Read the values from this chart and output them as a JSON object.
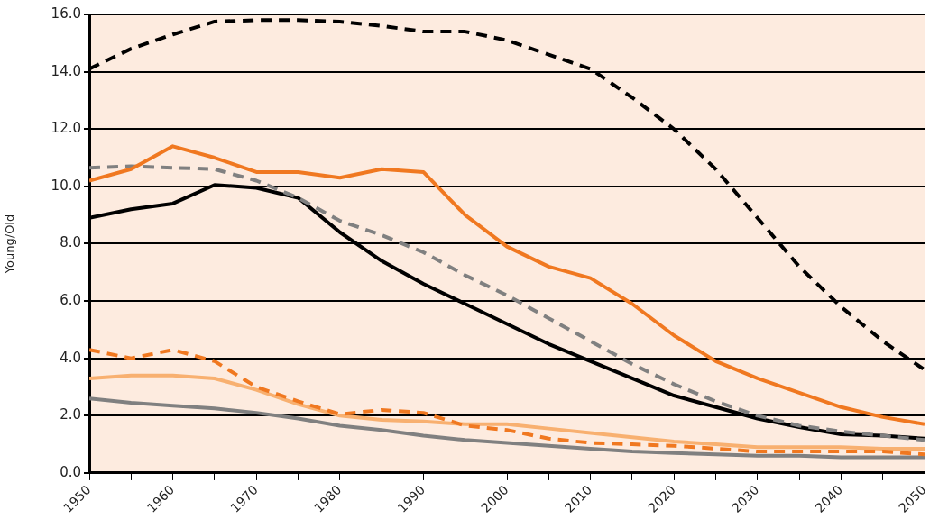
{
  "chart_data": {
    "type": "line",
    "ylabel": "Young/Old",
    "grid": "y",
    "legend": false,
    "marker": "none",
    "x": [
      1950,
      1955,
      1960,
      1965,
      1970,
      1975,
      1980,
      1985,
      1990,
      1995,
      2000,
      2005,
      2010,
      2015,
      2020,
      2025,
      2030,
      2035,
      2040,
      2045,
      2050
    ],
    "xlim": [
      1950,
      2050
    ],
    "xticks": [
      1950,
      {
        "value": 1955,
        "label": null
      },
      1960,
      {
        "value": 1965,
        "label": null
      },
      1970,
      {
        "value": 1975,
        "label": null
      },
      1980,
      {
        "value": 1985,
        "label": null
      },
      1990,
      {
        "value": 1995,
        "label": null
      },
      2000,
      {
        "value": 2005,
        "label": null
      },
      2010,
      {
        "value": 2015,
        "label": null
      },
      2020,
      {
        "value": 2025,
        "label": null
      },
      2030,
      {
        "value": 2035,
        "label": null
      },
      2040,
      {
        "value": 2045,
        "label": null
      },
      2050
    ],
    "ylim": [
      0,
      16
    ],
    "yticks": [
      {
        "value": 0,
        "label": "0.0"
      },
      {
        "value": 2,
        "label": "2.0"
      },
      {
        "value": 4,
        "label": "4.0"
      },
      {
        "value": 6,
        "label": "6.0"
      },
      {
        "value": 8,
        "label": "8.0"
      },
      {
        "value": 10,
        "label": "10.0"
      },
      {
        "value": 12,
        "label": "12.0"
      },
      {
        "value": 14,
        "label": "14.0"
      },
      {
        "value": 16,
        "label": "16.0"
      }
    ],
    "series": [
      {
        "color": "#000000",
        "line_style": "dashed",
        "values": [
          14.1,
          14.8,
          15.3,
          15.75,
          15.8,
          15.8,
          15.75,
          15.6,
          15.4,
          15.4,
          15.1,
          14.6,
          14.1,
          13.1,
          12.0,
          10.6,
          8.9,
          7.2,
          5.8,
          4.6,
          3.6
        ]
      },
      {
        "color": "#f07820",
        "line_style": "solid",
        "values": [
          10.2,
          10.6,
          11.4,
          11.0,
          10.5,
          10.5,
          10.3,
          10.6,
          10.5,
          9.0,
          7.9,
          7.2,
          6.8,
          5.9,
          4.8,
          3.9,
          3.3,
          2.8,
          2.3,
          1.95,
          1.7
        ]
      },
      {
        "color": "#808080",
        "line_style": "dashed",
        "values": [
          10.65,
          10.7,
          10.65,
          10.6,
          10.2,
          9.6,
          8.8,
          8.3,
          7.7,
          6.9,
          6.2,
          5.4,
          4.6,
          3.8,
          3.1,
          2.5,
          2.0,
          1.65,
          1.45,
          1.3,
          1.15
        ]
      },
      {
        "color": "#000000",
        "line_style": "solid",
        "values": [
          8.9,
          9.2,
          9.4,
          10.05,
          9.95,
          9.6,
          8.4,
          7.4,
          6.6,
          5.9,
          5.2,
          4.5,
          3.9,
          3.3,
          2.7,
          2.3,
          1.9,
          1.6,
          1.35,
          1.3,
          1.2
        ]
      },
      {
        "color": "#f07820",
        "line_style": "dashed",
        "values": [
          4.3,
          4.0,
          4.3,
          3.9,
          3.0,
          2.5,
          2.05,
          2.2,
          2.1,
          1.65,
          1.5,
          1.2,
          1.05,
          1.0,
          0.95,
          0.85,
          0.75,
          0.75,
          0.75,
          0.75,
          0.65
        ]
      },
      {
        "color": "#f8b070",
        "line_style": "solid",
        "values": [
          3.3,
          3.4,
          3.4,
          3.3,
          2.9,
          2.4,
          2.0,
          1.85,
          1.8,
          1.7,
          1.7,
          1.55,
          1.4,
          1.25,
          1.1,
          1.0,
          0.9,
          0.9,
          0.9,
          0.85,
          0.85
        ]
      },
      {
        "color": "#808080",
        "line_style": "solid",
        "values": [
          2.6,
          2.45,
          2.35,
          2.25,
          2.1,
          1.9,
          1.65,
          1.5,
          1.3,
          1.15,
          1.05,
          0.95,
          0.85,
          0.75,
          0.7,
          0.65,
          0.6,
          0.6,
          0.55,
          0.55,
          0.55
        ]
      }
    ]
  }
}
